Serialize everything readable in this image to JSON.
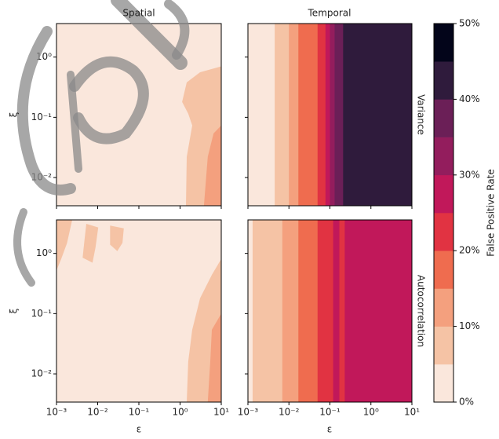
{
  "chart_data": {
    "type": "contour",
    "xlabel": "ε",
    "ylabel": "ξ",
    "columns": [
      "Spatial",
      "Temporal"
    ],
    "rows": [
      "Variance",
      "Autocorrelation"
    ],
    "log_x": true,
    "log_y": true,
    "xlim": [
      0.001,
      10
    ],
    "ylim": [
      0.0034,
      3.6
    ],
    "xticks": [
      {
        "value": 0.001,
        "label": "10⁻³"
      },
      {
        "value": 0.01,
        "label": "10⁻²"
      },
      {
        "value": 0.1,
        "label": "10⁻¹"
      },
      {
        "value": 1,
        "label": "10⁰"
      },
      {
        "value": 10,
        "label": "10¹"
      }
    ],
    "yticks": [
      {
        "value": 0.01,
        "label": "10⁻²"
      },
      {
        "value": 0.1,
        "label": "10⁻¹"
      },
      {
        "value": 1,
        "label": "10⁰"
      }
    ],
    "colorbar": {
      "label": "False Positive Rate",
      "levels": [
        0,
        5,
        10,
        15,
        20,
        25,
        30,
        35,
        40,
        45,
        50
      ],
      "colors": [
        "#fae7dc",
        "#f5c3a5",
        "#f4a07e",
        "#ef6c4f",
        "#e13342",
        "#c1185a",
        "#931d5d",
        "#6b1f57",
        "#2f1b3c",
        "#03051a"
      ],
      "ticks": [
        {
          "value": 0,
          "label": "0%"
        },
        {
          "value": 10,
          "label": "10%"
        },
        {
          "value": 20,
          "label": "20%"
        },
        {
          "value": 30,
          "label": "30%"
        },
        {
          "value": 40,
          "label": "40%"
        },
        {
          "value": 50,
          "label": "50%"
        }
      ]
    },
    "panels": [
      {
        "background_level": 0,
        "regions": [
          {
            "level": 5,
            "polygon": [
              [
                10,
                0.7
              ],
              [
                3.06,
                0.56
              ],
              [
                1.45,
                0.38
              ],
              [
                1.12,
                0.18
              ],
              [
                1.58,
                0.115
              ],
              [
                1.97,
                0.073
              ],
              [
                1.45,
                0.022
              ],
              [
                1.39,
                0.0034
              ],
              [
                10,
                0.0034
              ]
            ]
          },
          {
            "level": 10,
            "polygon": [
              [
                10,
                0.073
              ],
              [
                6.5,
                0.054
              ],
              [
                4.7,
                0.022
              ],
              [
                3.8,
                0.0034
              ],
              [
                10,
                0.0034
              ]
            ]
          }
        ]
      },
      {
        "band_edges": [
          0.001,
          0.0045,
          0.01,
          0.017,
          0.05,
          0.078,
          0.1,
          0.13,
          0.21,
          10
        ],
        "band_levels": [
          0,
          5,
          10,
          15,
          20,
          25,
          30,
          35,
          40
        ]
      },
      {
        "background_level": 0,
        "regions": [
          {
            "level": 5,
            "polygon": [
              [
                10,
                0.81
              ],
              [
                5.9,
                0.44
              ],
              [
                3.06,
                0.18
              ],
              [
                1.97,
                0.054
              ],
              [
                1.58,
                0.016
              ],
              [
                1.45,
                0.0034
              ],
              [
                10,
                0.0034
              ]
            ]
          },
          {
            "level": 10,
            "polygon": [
              [
                10,
                0.1
              ],
              [
                5.9,
                0.054
              ],
              [
                5.4,
                0.016
              ],
              [
                4.7,
                0.0034
              ],
              [
                10,
                0.0034
              ]
            ]
          },
          {
            "level": 5,
            "polygon": [
              [
                0.001,
                3.6
              ],
              [
                0.0024,
                3.6
              ],
              [
                0.0018,
                1.48
              ],
              [
                0.0013,
                0.81
              ],
              [
                0.001,
                0.52
              ]
            ]
          },
          {
            "level": 5,
            "polygon": [
              [
                0.0053,
                3.1
              ],
              [
                0.0103,
                2.7
              ],
              [
                0.0089,
                1.27
              ],
              [
                0.0075,
                0.7
              ],
              [
                0.0043,
                0.85
              ],
              [
                0.0048,
                1.72
              ]
            ]
          },
          {
            "level": 5,
            "polygon": [
              [
                0.02,
                2.9
              ],
              [
                0.043,
                2.6
              ],
              [
                0.04,
                1.5
              ],
              [
                0.03,
                1.09
              ],
              [
                0.02,
                1.4
              ]
            ]
          }
        ]
      },
      {
        "band_edges": [
          0.001,
          0.0013,
          0.0069,
          0.017,
          0.05,
          0.12,
          0.17,
          0.23,
          10
        ],
        "band_levels": [
          0,
          5,
          10,
          15,
          20,
          25,
          20,
          25
        ]
      }
    ]
  }
}
